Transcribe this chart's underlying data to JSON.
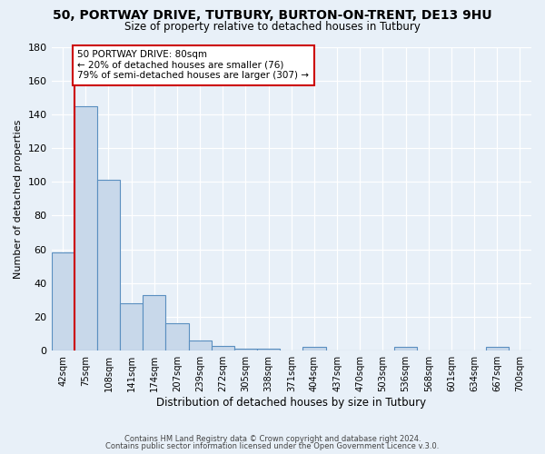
{
  "title1": "50, PORTWAY DRIVE, TUTBURY, BURTON-ON-TRENT, DE13 9HU",
  "title2": "Size of property relative to detached houses in Tutbury",
  "xlabel": "Distribution of detached houses by size in Tutbury",
  "ylabel": "Number of detached properties",
  "bar_labels": [
    "42sqm",
    "75sqm",
    "108sqm",
    "141sqm",
    "174sqm",
    "207sqm",
    "239sqm",
    "272sqm",
    "305sqm",
    "338sqm",
    "371sqm",
    "404sqm",
    "437sqm",
    "470sqm",
    "503sqm",
    "536sqm",
    "568sqm",
    "601sqm",
    "634sqm",
    "667sqm",
    "700sqm"
  ],
  "bar_heights": [
    58,
    145,
    101,
    28,
    33,
    16,
    6,
    3,
    1,
    1,
    0,
    2,
    0,
    0,
    0,
    2,
    0,
    0,
    0,
    2,
    0
  ],
  "bar_color": "#c8d8ea",
  "bar_edge_color": "#5a8fc0",
  "vline_x": 0.5,
  "vline_color": "#cc0000",
  "annotation_line1": "50 PORTWAY DRIVE: 80sqm",
  "annotation_line2": "← 20% of detached houses are smaller (76)",
  "annotation_line3": "79% of semi-detached houses are larger (307) →",
  "annotation_box_color": "#ffffff",
  "annotation_box_edge": "#cc0000",
  "ylim": [
    0,
    180
  ],
  "yticks": [
    0,
    20,
    40,
    60,
    80,
    100,
    120,
    140,
    160,
    180
  ],
  "footer1": "Contains HM Land Registry data © Crown copyright and database right 2024.",
  "footer2": "Contains public sector information licensed under the Open Government Licence v.3.0.",
  "bg_color": "#e8f0f8",
  "plot_bg_color": "#e8f0f8",
  "grid_color": "#c8d4e0"
}
